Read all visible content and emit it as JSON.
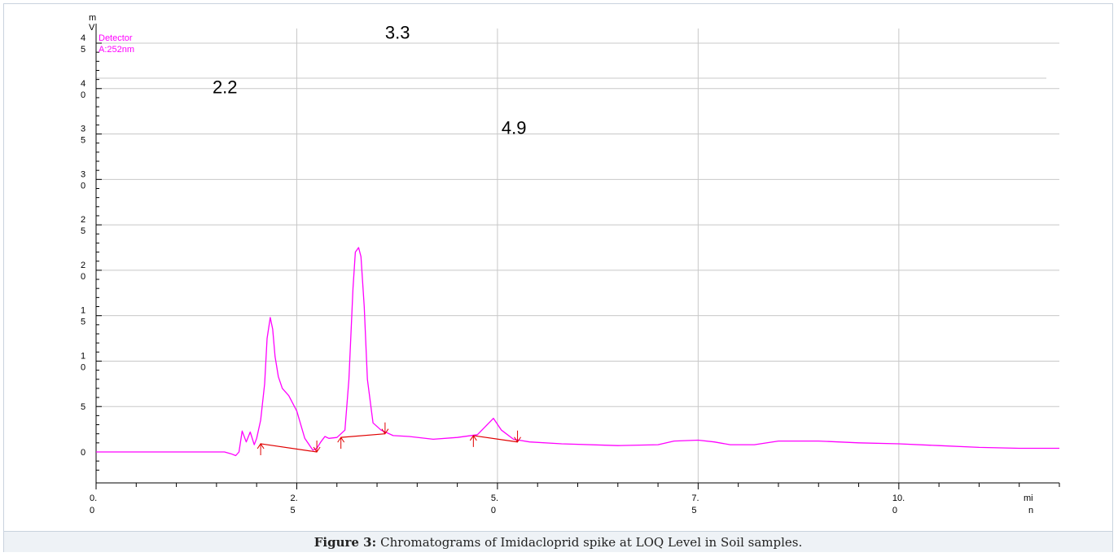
{
  "chart_data": {
    "type": "line",
    "y_unit_label": "mV",
    "x_unit_label": "min",
    "legend": [
      "Detector",
      "A:252nm"
    ],
    "xlim": [
      0,
      12
    ],
    "ylim": [
      -2,
      46
    ],
    "x_ticks": [
      {
        "value": 0,
        "label": "0.0"
      },
      {
        "value": 2.5,
        "label": "2.5"
      },
      {
        "value": 5.0,
        "label": "5.0"
      },
      {
        "value": 7.5,
        "label": "7.5"
      },
      {
        "value": 10.0,
        "label": "10.0"
      }
    ],
    "y_ticks": [
      {
        "value": 0,
        "label": "0"
      },
      {
        "value": 5,
        "label": "5"
      },
      {
        "value": 10,
        "label": "10"
      },
      {
        "value": 15,
        "label": "15"
      },
      {
        "value": 20,
        "label": "20"
      },
      {
        "value": 25,
        "label": "25"
      },
      {
        "value": 30,
        "label": "30"
      },
      {
        "value": 35,
        "label": "35"
      },
      {
        "value": 40,
        "label": "40"
      },
      {
        "value": 45,
        "label": "45"
      }
    ],
    "peak_labels": [
      {
        "text": "2.2",
        "x": 1.45,
        "y": 39.5
      },
      {
        "text": "3.3",
        "x": 3.6,
        "y": 45.5
      },
      {
        "text": "4.9",
        "x": 5.05,
        "y": 35
      }
    ],
    "series": [
      {
        "color": "#ff00ff",
        "x": [
          0,
          1.5,
          1.6,
          1.68,
          1.74,
          1.78,
          1.82,
          1.87,
          1.92,
          1.97,
          2.0,
          2.05,
          2.1,
          2.13,
          2.17,
          2.2,
          2.23,
          2.27,
          2.32,
          2.4,
          2.5,
          2.6,
          2.7,
          2.75,
          2.8,
          2.85,
          2.9,
          3.0,
          3.1,
          3.15,
          3.2,
          3.23,
          3.27,
          3.3,
          3.34,
          3.38,
          3.45,
          3.55,
          3.7,
          3.9,
          4.2,
          4.5,
          4.75,
          4.85,
          4.95,
          5.05,
          5.2,
          5.4,
          5.8,
          6.5,
          7.0,
          7.2,
          7.5,
          7.7,
          7.9,
          8.2,
          8.5,
          9.0,
          9.5,
          10.0,
          10.5,
          11.0,
          11.5,
          12.0
        ],
        "y": [
          0,
          0,
          0,
          -0.2,
          -0.4,
          0,
          2.3,
          1.1,
          2.2,
          0.8,
          1.5,
          3.5,
          7.5,
          12.5,
          14.8,
          13.5,
          10.5,
          8.3,
          7.0,
          6.2,
          4.5,
          1.5,
          0.2,
          0.4,
          1.1,
          1.7,
          1.5,
          1.6,
          2.4,
          8.0,
          18.0,
          22.0,
          22.5,
          21.5,
          16.0,
          8.0,
          3.2,
          2.4,
          1.8,
          1.7,
          1.4,
          1.6,
          1.9,
          2.8,
          3.7,
          2.4,
          1.4,
          1.1,
          0.9,
          0.7,
          0.8,
          1.2,
          1.3,
          1.1,
          0.8,
          0.8,
          1.2,
          1.2,
          1.0,
          0.9,
          0.7,
          0.5,
          0.4,
          0.4
        ]
      }
    ],
    "integration_baselines": [
      {
        "x1": 2.05,
        "y1": 0.9,
        "x2": 2.75,
        "y2": 0.0
      },
      {
        "x1": 3.05,
        "y1": 1.6,
        "x2": 3.6,
        "y2": 2.0
      },
      {
        "x1": 4.7,
        "y1": 1.8,
        "x2": 5.25,
        "y2": 1.1
      }
    ]
  },
  "caption": {
    "label": "Figure 3:",
    "text": "Chromatograms of Imidacloprid spike at LOQ Level in Soil samples."
  }
}
